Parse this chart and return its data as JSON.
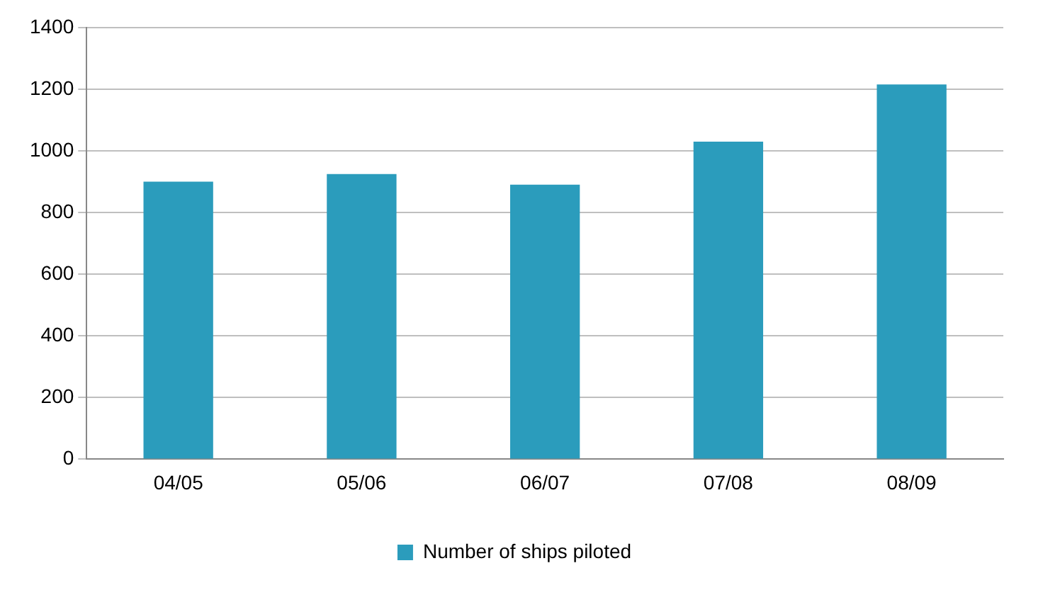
{
  "chart_data": {
    "type": "bar",
    "categories": [
      "04/05",
      "05/06",
      "06/07",
      "07/08",
      "08/09"
    ],
    "series": [
      {
        "name": "Number of ships piloted",
        "color": "#2b9cbc",
        "values": [
          900,
          925,
          890,
          1030,
          1215
        ]
      }
    ],
    "ylim": [
      0,
      1400
    ],
    "yticks": [
      0,
      200,
      400,
      600,
      800,
      1000,
      1200,
      1400
    ],
    "grid": "y",
    "legend": "bottom"
  }
}
